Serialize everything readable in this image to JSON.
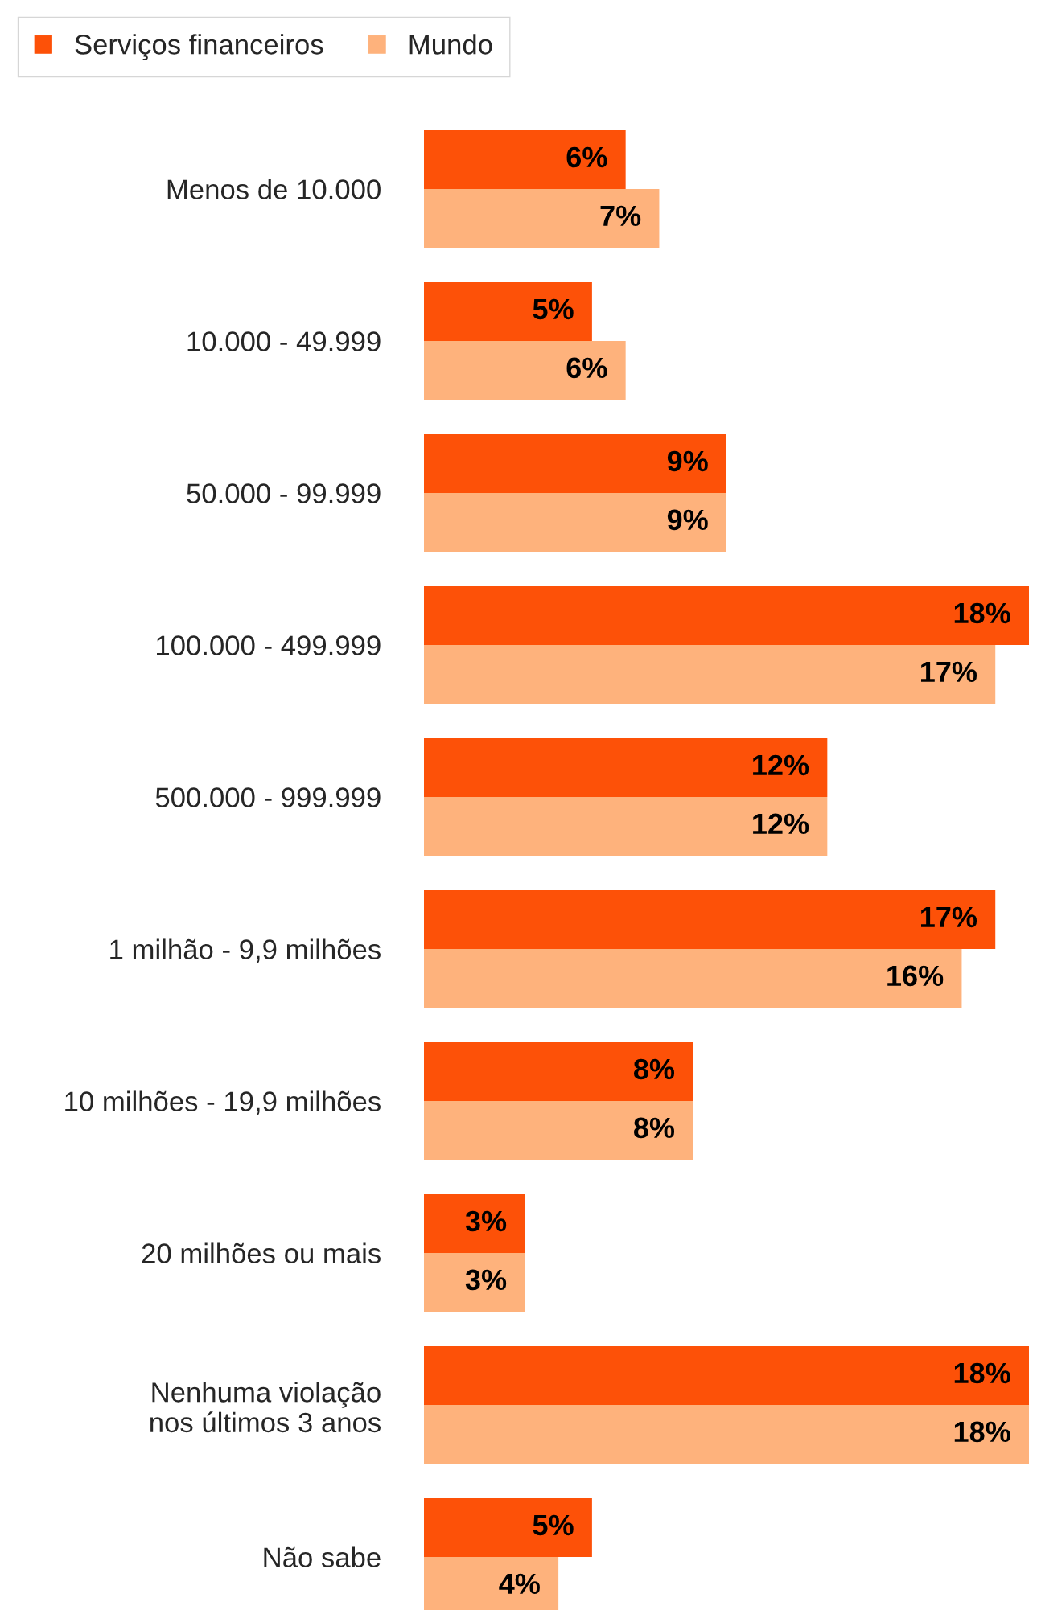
{
  "chart_data": {
    "type": "bar",
    "orientation": "horizontal",
    "legend": "top left",
    "tick_labels": "y",
    "grid": false,
    "categories": [
      "Menos de 10.000",
      "10.000 - 49.999",
      "50.000 - 99.999",
      "100.000 - 499.999",
      "500.000 - 999.999",
      "1 milhão - 9,9 milhões",
      "10 milhões - 19,9 milhões",
      "20 milhões ou mais",
      "Nenhuma violação\nnos últimos 3 anos",
      "Não sabe"
    ],
    "series": [
      {
        "name": "Serviços financeiros",
        "color": "#fd5108",
        "values": [
          6,
          5,
          9,
          18,
          12,
          17,
          8,
          3,
          18,
          5
        ],
        "value_labels": [
          "6%",
          "5%",
          "9%",
          "18%",
          "12%",
          "17%",
          "8%",
          "3%",
          "18%",
          "5%"
        ]
      },
      {
        "name": "Mundo",
        "color": "#feb27c",
        "values": [
          7,
          6,
          9,
          17,
          12,
          16,
          8,
          3,
          18,
          4
        ],
        "value_labels": [
          "7%",
          "6%",
          "9%",
          "17%",
          "12%",
          "16%",
          "8%",
          "3%",
          "18%",
          "4%"
        ]
      }
    ]
  }
}
